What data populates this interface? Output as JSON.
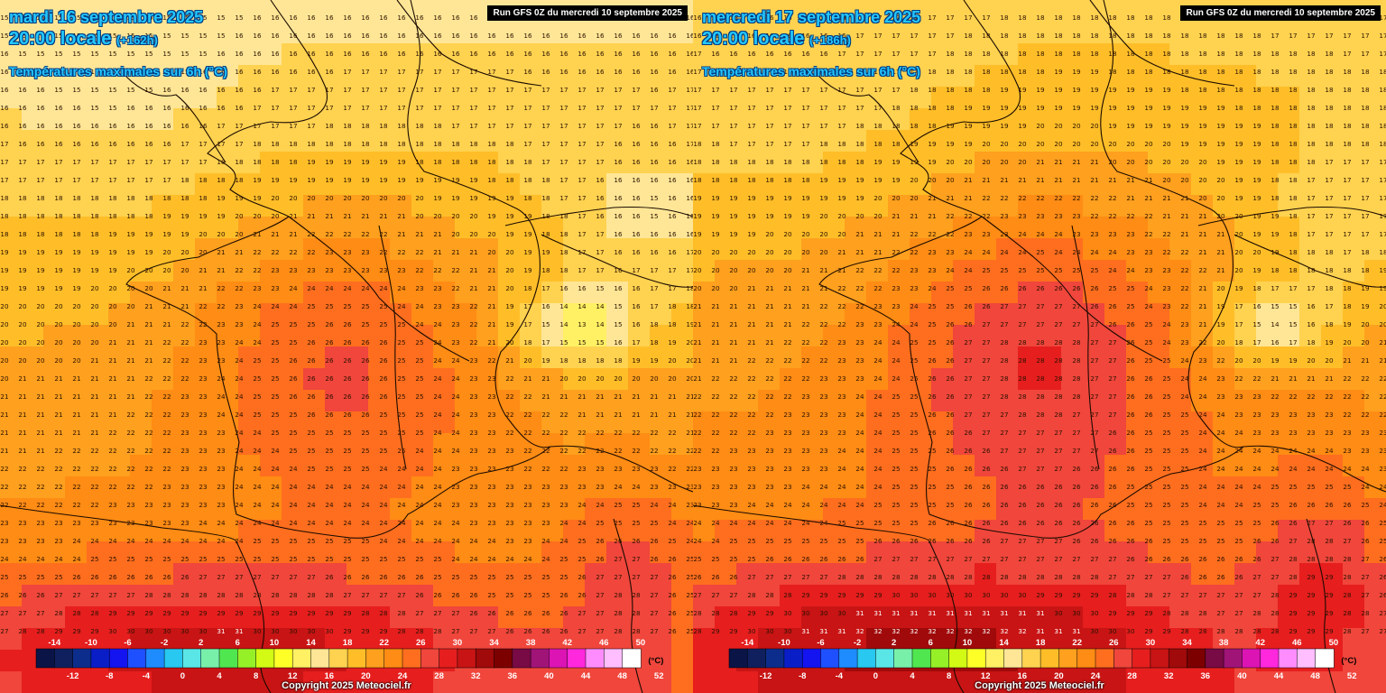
{
  "legend": {
    "unit": "(°C)",
    "top_labels": [
      "-14",
      "-10",
      "-6",
      "-2",
      "2",
      "6",
      "10",
      "14",
      "18",
      "22",
      "26",
      "30",
      "34",
      "38",
      "42",
      "46",
      "50"
    ],
    "bottom_labels": [
      "-12",
      "-8",
      "-4",
      "0",
      "4",
      "8",
      "12",
      "16",
      "20",
      "24",
      "28",
      "32",
      "36",
      "40",
      "44",
      "48",
      "52"
    ],
    "colors": [
      "#0a1446",
      "#10205e",
      "#0c2d8c",
      "#0a1ec8",
      "#1414f0",
      "#1e50ff",
      "#1e8cff",
      "#28c8f0",
      "#5ae6e6",
      "#78f0aa",
      "#50e650",
      "#96f028",
      "#d2fa14",
      "#ffff28",
      "#fff064",
      "#ffe696",
      "#ffd250",
      "#ffbe28",
      "#ffa01e",
      "#ff8c14",
      "#ff6e1e",
      "#f0463c",
      "#e61e1e",
      "#c81414",
      "#a00a0a",
      "#7c0000",
      "#780a46",
      "#a01478",
      "#dc14b4",
      "#ff28dc",
      "#ff8cff",
      "#ffbeff",
      "#ffffff"
    ]
  },
  "panels": [
    {
      "run_label": "Run GFS 0Z du mercredi 10 septembre 2025",
      "date_label": "mardi 16 septembre 2025",
      "time_label": "20:00 locale",
      "lead_label": "(+162h)",
      "field_label": "Températures maximales sur 6h (°C)",
      "copyright": "Copyright 2025 Meteociel.fr",
      "bias": 0
    },
    {
      "run_label": "Run GFS 0Z du mercredi 10 septembre 2025",
      "date_label": "mercredi 17 septembre 2025",
      "time_label": "20:00 locale",
      "lead_label": "(+186h)",
      "field_label": "Températures maximales sur 6h (°C)",
      "copyright": "Copyright 2025 Meteociel.fr",
      "bias": 2
    }
  ],
  "colors": {
    "title_text": "#24c8ff",
    "title_outline": "#003a80",
    "coastline": "#1a0a00",
    "grid_value_text": "#2a1200"
  }
}
